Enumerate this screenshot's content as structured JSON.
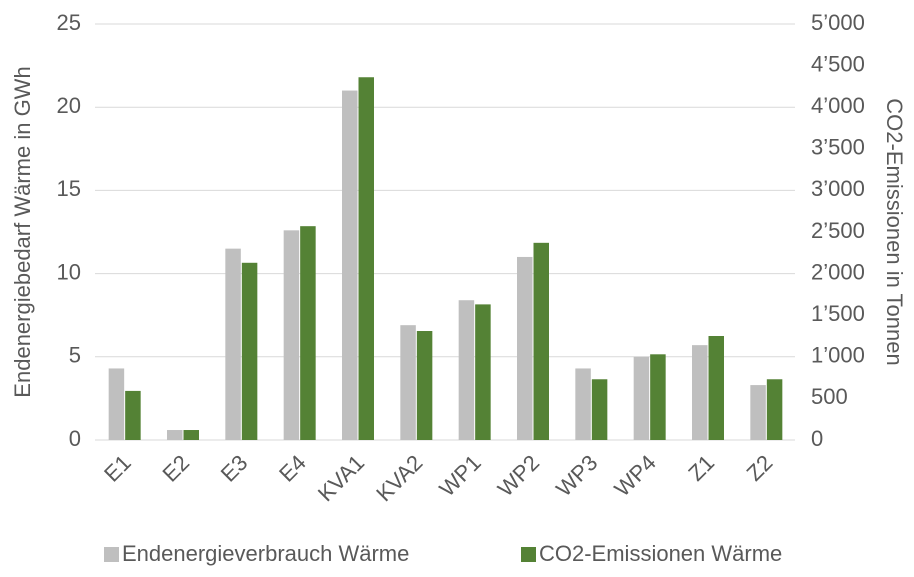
{
  "chart_data": {
    "type": "bar",
    "categories": [
      "E1",
      "E2",
      "E3",
      "E4",
      "KVA1",
      "KVA2",
      "WP1",
      "WP2",
      "WP3",
      "WP4",
      "Z1",
      "Z2"
    ],
    "series": [
      {
        "name": "Endenergieverbrauch Wärme",
        "color": "#bfbfbf",
        "values": [
          4.3,
          0.6,
          11.5,
          12.6,
          21.0,
          6.9,
          8.4,
          11.0,
          4.3,
          5.0,
          5.7,
          3.3
        ]
      },
      {
        "name": "CO2-Emissionen Wärme",
        "color": "#548235",
        "axis": "y2",
        "values": [
          590,
          120,
          2130,
          2570,
          4360,
          1310,
          1630,
          2370,
          730,
          1030,
          1250,
          730
        ]
      }
    ],
    "ylabel": "Endenergiebedarf Wärme in GWh",
    "y2label": "CO2-Emissionen in Tonnen",
    "ylim": [
      0,
      25
    ],
    "yticks": [
      0,
      5,
      10,
      15,
      20,
      25
    ],
    "y2lim": [
      0,
      5000
    ],
    "y2ticks": [
      0,
      500,
      {
        "value": 1000,
        "label": "1’000"
      },
      {
        "value": 1500,
        "label": "1’500"
      },
      {
        "value": 2000,
        "label": "2’000"
      },
      {
        "value": 2500,
        "label": "2’500"
      },
      {
        "value": 3000,
        "label": "3’000"
      },
      {
        "value": 3500,
        "label": "3’500"
      },
      {
        "value": 4000,
        "label": "4’000"
      },
      {
        "value": 4500,
        "label": "4’500"
      },
      {
        "value": 5000,
        "label": "5’000"
      }
    ],
    "grid": true,
    "legend": "bottom"
  }
}
